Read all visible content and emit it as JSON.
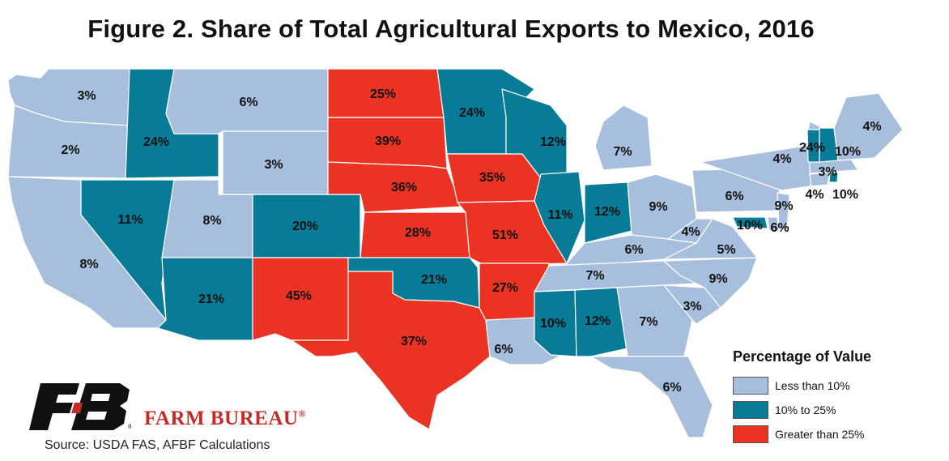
{
  "title": "Figure 2. Share of Total Agricultural Exports to Mexico, 2016",
  "colors": {
    "low": "#a7bfdc",
    "mid": "#087b96",
    "high": "#ea3323"
  },
  "legend": {
    "title": "Percentage of Value",
    "items": [
      {
        "label": "Less than 10%",
        "color": "#a7bfdc"
      },
      {
        "label": "10% to 25%",
        "color": "#087b96"
      },
      {
        "label": "Greater than 25%",
        "color": "#ea3323"
      }
    ]
  },
  "states": [
    {
      "id": "WA",
      "value": "3%",
      "category": "low"
    },
    {
      "id": "OR",
      "value": "2%",
      "category": "low"
    },
    {
      "id": "CA",
      "value": "8%",
      "category": "low"
    },
    {
      "id": "ID",
      "value": "24%",
      "category": "mid"
    },
    {
      "id": "NV",
      "value": "11%",
      "category": "mid"
    },
    {
      "id": "MT",
      "value": "6%",
      "category": "low"
    },
    {
      "id": "WY",
      "value": "3%",
      "category": "low"
    },
    {
      "id": "UT",
      "value": "8%",
      "category": "low"
    },
    {
      "id": "AZ",
      "value": "21%",
      "category": "mid"
    },
    {
      "id": "CO",
      "value": "20%",
      "category": "mid"
    },
    {
      "id": "NM",
      "value": "45%",
      "category": "high"
    },
    {
      "id": "ND",
      "value": "25%",
      "category": "high"
    },
    {
      "id": "SD",
      "value": "39%",
      "category": "high"
    },
    {
      "id": "NE",
      "value": "36%",
      "category": "high"
    },
    {
      "id": "KS",
      "value": "28%",
      "category": "high"
    },
    {
      "id": "OK",
      "value": "21%",
      "category": "mid"
    },
    {
      "id": "TX",
      "value": "37%",
      "category": "high"
    },
    {
      "id": "MN",
      "value": "24%",
      "category": "mid"
    },
    {
      "id": "IA",
      "value": "35%",
      "category": "high"
    },
    {
      "id": "MO",
      "value": "51%",
      "category": "high"
    },
    {
      "id": "AR",
      "value": "27%",
      "category": "high"
    },
    {
      "id": "LA",
      "value": "6%",
      "category": "low"
    },
    {
      "id": "WI",
      "value": "12%",
      "category": "mid"
    },
    {
      "id": "IL",
      "value": "11%",
      "category": "mid"
    },
    {
      "id": "MI",
      "value": "7%",
      "category": "low"
    },
    {
      "id": "IN",
      "value": "12%",
      "category": "mid"
    },
    {
      "id": "OH",
      "value": "9%",
      "category": "low"
    },
    {
      "id": "KY",
      "value": "6%",
      "category": "low"
    },
    {
      "id": "TN",
      "value": "7%",
      "category": "low"
    },
    {
      "id": "MS",
      "value": "10%",
      "category": "mid"
    },
    {
      "id": "AL",
      "value": "12%",
      "category": "mid"
    },
    {
      "id": "GA",
      "value": "7%",
      "category": "low"
    },
    {
      "id": "FL",
      "value": "6%",
      "category": "low"
    },
    {
      "id": "SC",
      "value": "3%",
      "category": "low"
    },
    {
      "id": "NC",
      "value": "9%",
      "category": "low"
    },
    {
      "id": "VA",
      "value": "5%",
      "category": "low"
    },
    {
      "id": "WV",
      "value": "4%",
      "category": "low"
    },
    {
      "id": "PA",
      "value": "6%",
      "category": "low"
    },
    {
      "id": "NY",
      "value": "4%",
      "category": "low"
    },
    {
      "id": "MD",
      "value": "10%",
      "category": "mid"
    },
    {
      "id": "DE",
      "value": "6%",
      "category": "low"
    },
    {
      "id": "NJ",
      "value": "9%",
      "category": "low"
    },
    {
      "id": "CT",
      "value": "4%",
      "category": "low"
    },
    {
      "id": "RI",
      "value": "10%",
      "category": "mid"
    },
    {
      "id": "MA",
      "value": "3%",
      "category": "low"
    },
    {
      "id": "VT",
      "value": "24%",
      "category": "mid"
    },
    {
      "id": "NH",
      "value": "10%",
      "category": "mid"
    },
    {
      "id": "ME",
      "value": "4%",
      "category": "low"
    }
  ],
  "branding": {
    "logo_text": "FARM BUREAU",
    "registered_mark": "®"
  },
  "source": "Source: USDA FAS, AFBF Calculations"
}
